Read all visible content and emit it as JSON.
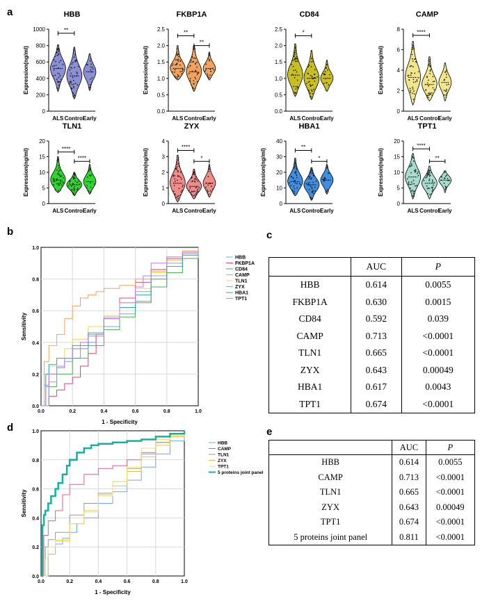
{
  "panel_labels": {
    "a": "a",
    "b": "b",
    "c": "c",
    "d": "d",
    "e": "e"
  },
  "chart_data": [
    {
      "id": "hbb",
      "type": "violin",
      "title": "HBB",
      "ylabel": "Expression(ng/ml)",
      "ylim": [
        0,
        1000
      ],
      "yticks": [
        "0",
        "200",
        "400",
        "600",
        "800",
        "1000"
      ],
      "categories": [
        "ALS",
        "Control",
        "Early"
      ],
      "colors": [
        "#8b8fd3",
        "#8b8fd3",
        "#8b8fd3"
      ],
      "groups": [
        {
          "min": 240,
          "max": 810,
          "median": 520
        },
        {
          "min": 150,
          "max": 780,
          "median": 430
        },
        {
          "min": 250,
          "max": 700,
          "median": 480
        }
      ],
      "brackets": [
        {
          "from": 0,
          "to": 1,
          "label": "**",
          "y": 950
        }
      ]
    },
    {
      "id": "fkbp1a",
      "type": "violin",
      "title": "FKBP1A",
      "ylabel": "Expression(ng/ml)",
      "ylim": [
        0,
        2.5
      ],
      "yticks": [
        "0.0",
        "0.5",
        "1.0",
        "1.5",
        "2.0",
        "2.5"
      ],
      "categories": [
        "ALS",
        "Control",
        "Early"
      ],
      "colors": [
        "#f0a35c",
        "#f0a35c",
        "#f0a35c"
      ],
      "groups": [
        {
          "min": 0.95,
          "max": 2.0,
          "median": 1.3
        },
        {
          "min": 0.6,
          "max": 2.0,
          "median": 1.2
        },
        {
          "min": 0.95,
          "max": 1.8,
          "median": 1.3
        }
      ],
      "brackets": [
        {
          "from": 0,
          "to": 1,
          "label": "**",
          "y": 2.3
        },
        {
          "from": 1,
          "to": 2,
          "label": "**",
          "y": 2.0
        }
      ]
    },
    {
      "id": "cd84",
      "type": "violin",
      "title": "CD84",
      "ylabel": "",
      "ylim": [
        0,
        2.5
      ],
      "yticks": [
        "0.0",
        "0.5",
        "1.0",
        "1.5",
        "2.0",
        "2.5"
      ],
      "categories": [
        "ALS",
        "Control",
        "Early"
      ],
      "colors": [
        "#c9be22",
        "#c9be22",
        "#c9be22"
      ],
      "groups": [
        {
          "min": 0.45,
          "max": 2.05,
          "median": 1.1
        },
        {
          "min": 0.35,
          "max": 1.85,
          "median": 1.0
        },
        {
          "min": 0.6,
          "max": 1.55,
          "median": 1.0
        }
      ],
      "brackets": [
        {
          "from": 0,
          "to": 1,
          "label": "*",
          "y": 2.3
        }
      ]
    },
    {
      "id": "camp",
      "type": "violin",
      "title": "CAMP",
      "ylabel": "Expression(ng/ml)",
      "ylim": [
        0,
        8
      ],
      "yticks": [
        "0",
        "2",
        "4",
        "6",
        "8"
      ],
      "categories": [
        "ALS",
        "Control",
        "Early"
      ],
      "colors": [
        "#f2e68a",
        "#f2e68a",
        "#f2e68a"
      ],
      "groups": [
        {
          "min": 0.6,
          "max": 6.8,
          "median": 3.3
        },
        {
          "min": 1.0,
          "max": 5.3,
          "median": 2.6
        },
        {
          "min": 1.0,
          "max": 4.7,
          "median": 2.8
        }
      ],
      "brackets": [
        {
          "from": 0,
          "to": 1,
          "label": "****",
          "y": 7.4
        }
      ]
    },
    {
      "id": "tln1",
      "type": "violin",
      "title": "TLN1",
      "ylabel": "Expression(ng/ml)",
      "ylim": [
        0,
        20
      ],
      "yticks": [
        "0",
        "5",
        "10",
        "15",
        "20"
      ],
      "categories": [
        "ALS",
        "Control",
        "Early"
      ],
      "colors": [
        "#2fd62f",
        "#2fd62f",
        "#2fd62f"
      ],
      "groups": [
        {
          "min": 3.5,
          "max": 15,
          "median": 7.5
        },
        {
          "min": 2.5,
          "max": 10,
          "median": 6
        },
        {
          "min": 3,
          "max": 12.5,
          "median": 7
        }
      ],
      "brackets": [
        {
          "from": 0,
          "to": 1,
          "label": "****",
          "y": 16.5
        },
        {
          "from": 1,
          "to": 2,
          "label": "****",
          "y": 13.5
        }
      ]
    },
    {
      "id": "zyx",
      "type": "violin",
      "title": "ZYX",
      "ylabel": "Expression(ng/ml)",
      "ylim": [
        0,
        4
      ],
      "yticks": [
        "0",
        "1",
        "2",
        "3",
        "4"
      ],
      "categories": [
        "ALS",
        "Control",
        "Early"
      ],
      "colors": [
        "#ef8b8b",
        "#ef8b8b",
        "#ef8b8b"
      ],
      "groups": [
        {
          "min": 0.1,
          "max": 3.1,
          "median": 1.3
        },
        {
          "min": 0.3,
          "max": 2.2,
          "median": 1.1
        },
        {
          "min": 0.4,
          "max": 2.5,
          "median": 1.3
        }
      ],
      "brackets": [
        {
          "from": 0,
          "to": 1,
          "label": "****",
          "y": 3.4
        },
        {
          "from": 1,
          "to": 2,
          "label": "*",
          "y": 2.7
        }
      ]
    },
    {
      "id": "hba1",
      "type": "violin",
      "title": "HBA1",
      "ylabel": "Expression(ng/ml)",
      "ylim": [
        0,
        40
      ],
      "yticks": [
        "0",
        "10",
        "20",
        "30",
        "40"
      ],
      "categories": [
        "ALS",
        "Control",
        "Early"
      ],
      "colors": [
        "#3f8ee0",
        "#3f8ee0",
        "#3f8ee0"
      ],
      "groups": [
        {
          "min": 5,
          "max": 29,
          "median": 14
        },
        {
          "min": 2,
          "max": 23,
          "median": 12
        },
        {
          "min": 6,
          "max": 25,
          "median": 15
        }
      ],
      "brackets": [
        {
          "from": 0,
          "to": 1,
          "label": "**",
          "y": 34
        },
        {
          "from": 1,
          "to": 2,
          "label": "*",
          "y": 27
        }
      ]
    },
    {
      "id": "tpt1",
      "type": "violin",
      "title": "TPT1",
      "ylabel": "Expression(ng/ml)",
      "ylim": [
        0,
        20
      ],
      "yticks": [
        "0",
        "5",
        "10",
        "15",
        "20"
      ],
      "categories": [
        "ALS",
        "Control",
        "Early"
      ],
      "colors": [
        "#a6dccf",
        "#a6dccf",
        "#a6dccf"
      ],
      "groups": [
        {
          "min": 1.5,
          "max": 16,
          "median": 8.5
        },
        {
          "min": 1.5,
          "max": 12,
          "median": 6.5
        },
        {
          "min": 3.5,
          "max": 10.5,
          "median": 7.5
        }
      ],
      "brackets": [
        {
          "from": 0,
          "to": 1,
          "label": "****",
          "y": 17.5
        },
        {
          "from": 1,
          "to": 2,
          "label": "**",
          "y": 13.5
        }
      ]
    },
    {
      "id": "roc_b",
      "type": "line",
      "title": "",
      "xlabel": "1 - Specificity",
      "ylabel": "Sensitivity",
      "xlim": [
        0,
        1
      ],
      "ylim": [
        0,
        1
      ],
      "xticks": [
        "0.0",
        "0.2",
        "0.4",
        "0.6",
        "0.8",
        "1.0"
      ],
      "yticks": [
        "0.0",
        "0.2",
        "0.4",
        "0.6",
        "0.8",
        "1.0"
      ],
      "grid": true,
      "legend": "right",
      "series": [
        {
          "name": "HBB",
          "color": "#6fa8e8",
          "x": [
            0,
            0.02,
            0.05,
            0.1,
            0.15,
            0.2,
            0.25,
            0.3,
            0.35,
            0.4,
            0.5,
            0.6,
            0.7,
            0.8,
            0.9,
            1
          ],
          "y": [
            0,
            0.13,
            0.2,
            0.24,
            0.28,
            0.3,
            0.36,
            0.4,
            0.45,
            0.5,
            0.58,
            0.66,
            0.75,
            0.84,
            0.93,
            1
          ]
        },
        {
          "name": "FKBP1A",
          "color": "#e0407a",
          "x": [
            0,
            0.05,
            0.1,
            0.15,
            0.2,
            0.25,
            0.3,
            0.35,
            0.4,
            0.5,
            0.6,
            0.7,
            0.8,
            0.9,
            1
          ],
          "y": [
            0,
            0.06,
            0.1,
            0.14,
            0.18,
            0.25,
            0.33,
            0.45,
            0.55,
            0.68,
            0.78,
            0.86,
            0.93,
            0.97,
            1
          ]
        },
        {
          "name": "CD84",
          "color": "#4caf50",
          "x": [
            0,
            0.05,
            0.1,
            0.2,
            0.3,
            0.4,
            0.5,
            0.6,
            0.7,
            0.8,
            0.9,
            1
          ],
          "y": [
            0,
            0.12,
            0.2,
            0.3,
            0.38,
            0.48,
            0.56,
            0.65,
            0.75,
            0.84,
            0.93,
            1
          ]
        },
        {
          "name": "CAMP",
          "color": "#f5a060",
          "x": [
            0,
            0.02,
            0.05,
            0.1,
            0.15,
            0.2,
            0.25,
            0.3,
            0.35,
            0.4,
            0.5,
            0.6,
            0.7,
            0.8,
            0.9,
            1
          ],
          "y": [
            0,
            0.28,
            0.38,
            0.45,
            0.55,
            0.63,
            0.68,
            0.7,
            0.72,
            0.74,
            0.76,
            0.8,
            0.85,
            0.92,
            0.96,
            1
          ]
        },
        {
          "name": "TLN1",
          "color": "#ecd45a",
          "x": [
            0,
            0.03,
            0.05,
            0.1,
            0.15,
            0.2,
            0.3,
            0.4,
            0.5,
            0.6,
            0.7,
            0.8,
            0.9,
            1
          ],
          "y": [
            0,
            0.2,
            0.25,
            0.3,
            0.36,
            0.42,
            0.5,
            0.57,
            0.65,
            0.74,
            0.84,
            0.92,
            0.98,
            1
          ]
        },
        {
          "name": "ZYX",
          "color": "#8aa0d8",
          "x": [
            0,
            0.05,
            0.1,
            0.15,
            0.2,
            0.3,
            0.4,
            0.5,
            0.6,
            0.7,
            0.8,
            0.9,
            1
          ],
          "y": [
            0,
            0.15,
            0.24,
            0.3,
            0.36,
            0.45,
            0.56,
            0.62,
            0.72,
            0.82,
            0.9,
            0.96,
            1
          ]
        },
        {
          "name": "HBA1",
          "color": "#2aa7b8",
          "x": [
            0,
            0.03,
            0.05,
            0.1,
            0.2,
            0.3,
            0.4,
            0.5,
            0.6,
            0.7,
            0.8,
            0.9,
            1
          ],
          "y": [
            0,
            0.2,
            0.26,
            0.3,
            0.38,
            0.46,
            0.55,
            0.62,
            0.7,
            0.8,
            0.88,
            0.95,
            1
          ]
        },
        {
          "name": "TPT1",
          "color": "#c678e0",
          "x": [
            0,
            0.03,
            0.05,
            0.1,
            0.15,
            0.2,
            0.25,
            0.3,
            0.4,
            0.5,
            0.6,
            0.65,
            0.7,
            0.8,
            0.9,
            1
          ],
          "y": [
            0,
            0.12,
            0.2,
            0.25,
            0.3,
            0.36,
            0.4,
            0.44,
            0.55,
            0.65,
            0.75,
            0.82,
            0.9,
            0.94,
            0.97,
            1
          ]
        }
      ]
    },
    {
      "id": "roc_d",
      "type": "line",
      "title": "",
      "xlabel": "1 - Specificity",
      "ylabel": "Sensitivity",
      "xlim": [
        0,
        1
      ],
      "ylim": [
        0,
        1
      ],
      "xticks": [
        "0.0",
        "0.2",
        "0.4",
        "0.6",
        "0.8",
        "1.0"
      ],
      "yticks": [
        "0.0",
        "0.2",
        "0.4",
        "0.6",
        "0.8",
        "1.0"
      ],
      "grid": true,
      "legend": "right",
      "series": [
        {
          "name": "HBB",
          "color": "#6fa8e8",
          "width": 1,
          "x": [
            0,
            0.05,
            0.1,
            0.15,
            0.2,
            0.25,
            0.3,
            0.4,
            0.5,
            0.6,
            0.7,
            0.8,
            0.9,
            1
          ],
          "y": [
            0,
            0.15,
            0.22,
            0.26,
            0.3,
            0.36,
            0.4,
            0.5,
            0.58,
            0.66,
            0.75,
            0.84,
            0.93,
            1
          ]
        },
        {
          "name": "CAMP",
          "color": "#e05f8a",
          "width": 1,
          "x": [
            0,
            0.02,
            0.05,
            0.1,
            0.15,
            0.2,
            0.3,
            0.4,
            0.5,
            0.6,
            0.7,
            0.8,
            0.9,
            1
          ],
          "y": [
            0,
            0.28,
            0.38,
            0.45,
            0.56,
            0.63,
            0.7,
            0.74,
            0.76,
            0.8,
            0.85,
            0.92,
            0.96,
            1
          ]
        },
        {
          "name": "TLN1",
          "color": "#9a9a9a",
          "width": 1,
          "x": [
            0,
            0.03,
            0.05,
            0.1,
            0.2,
            0.3,
            0.4,
            0.5,
            0.6,
            0.7,
            0.8,
            0.9,
            1
          ],
          "y": [
            0,
            0.2,
            0.25,
            0.3,
            0.42,
            0.5,
            0.57,
            0.65,
            0.74,
            0.84,
            0.92,
            0.98,
            1
          ]
        },
        {
          "name": "ZYX",
          "color": "#e8c44a",
          "width": 1,
          "x": [
            0,
            0.05,
            0.1,
            0.2,
            0.3,
            0.4,
            0.5,
            0.6,
            0.7,
            0.8,
            0.9,
            1
          ],
          "y": [
            0,
            0.15,
            0.24,
            0.36,
            0.45,
            0.56,
            0.62,
            0.72,
            0.82,
            0.9,
            0.96,
            1
          ]
        },
        {
          "name": "TPT1",
          "color": "#f2e070",
          "width": 1,
          "x": [
            0,
            0.03,
            0.05,
            0.1,
            0.2,
            0.3,
            0.4,
            0.5,
            0.6,
            0.7,
            0.8,
            0.9,
            1
          ],
          "y": [
            0,
            0.12,
            0.2,
            0.25,
            0.36,
            0.44,
            0.55,
            0.65,
            0.75,
            0.88,
            0.94,
            0.97,
            1
          ]
        },
        {
          "name": "5 proteins joint panel",
          "color": "#15b0a0",
          "width": 2.5,
          "x": [
            0,
            0.01,
            0.02,
            0.03,
            0.05,
            0.07,
            0.1,
            0.12,
            0.15,
            0.18,
            0.2,
            0.25,
            0.3,
            0.35,
            0.4,
            0.5,
            0.6,
            0.7,
            0.8,
            0.9,
            1
          ],
          "y": [
            0,
            0.35,
            0.42,
            0.45,
            0.5,
            0.55,
            0.6,
            0.64,
            0.7,
            0.76,
            0.8,
            0.85,
            0.88,
            0.9,
            0.91,
            0.92,
            0.93,
            0.94,
            0.96,
            0.98,
            1
          ]
        }
      ]
    }
  ],
  "tableC": {
    "headers": [
      "",
      "AUC",
      "P"
    ],
    "rows": [
      [
        "HBB",
        "0.614",
        "0.0055"
      ],
      [
        "FKBP1A",
        "0.630",
        "0.0015"
      ],
      [
        "CD84",
        "0.592",
        "0.039"
      ],
      [
        "CAMP",
        "0.713",
        "<0.0001"
      ],
      [
        "TLN1",
        "0.665",
        "<0.0001"
      ],
      [
        "ZYX",
        "0.643",
        "0.00049"
      ],
      [
        "HBA1",
        "0.617",
        "0.0043"
      ],
      [
        "TPT1",
        "0.674",
        "<0.0001"
      ]
    ]
  },
  "tableE": {
    "headers": [
      "",
      "AUC",
      "P"
    ],
    "rows": [
      [
        "HBB",
        "0.614",
        "0.0055"
      ],
      [
        "CAMP",
        "0.713",
        "<0.0001"
      ],
      [
        "TLN1",
        "0.665",
        "<0.0001"
      ],
      [
        "ZYX",
        "0.643",
        "0.00049"
      ],
      [
        "TPT1",
        "0.674",
        "<0.0001"
      ],
      [
        "5 proteins joint panel",
        "0.811",
        "<0.0001"
      ]
    ]
  }
}
